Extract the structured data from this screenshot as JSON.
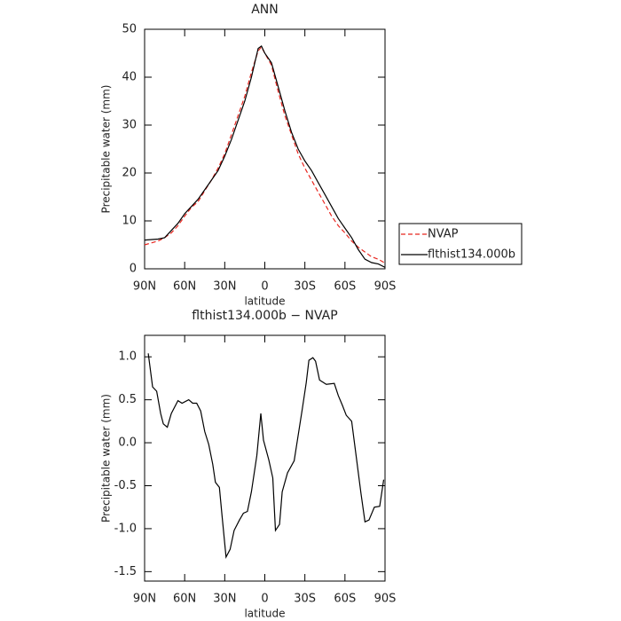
{
  "chart_data": [
    {
      "type": "line",
      "title": "ANN",
      "xlabel": "latitude",
      "ylabel": "Precipitable water (mm)",
      "x": [
        90,
        80,
        75,
        70,
        65,
        60,
        55,
        50,
        45,
        40,
        35,
        30,
        25,
        20,
        15,
        10,
        5,
        2.5,
        0,
        -5,
        -10,
        -15,
        -20,
        -25,
        -30,
        -35,
        -40,
        -45,
        -50,
        -55,
        -60,
        -65,
        -70,
        -75,
        -80,
        -85,
        -90
      ],
      "series": [
        {
          "name": "NVAP",
          "color": "#e8261f",
          "dashed": true,
          "values": [
            5,
            5.8,
            6.5,
            7.5,
            9,
            11,
            12.8,
            14,
            16.3,
            18.5,
            21,
            24,
            28,
            32,
            36,
            41,
            45.5,
            46.3,
            45,
            42.5,
            37,
            32,
            28,
            24,
            21,
            18.5,
            16,
            13.5,
            11,
            9,
            7.5,
            5.8,
            4.5,
            3.5,
            2.5,
            2,
            1.2
          ]
        },
        {
          "name": "flthist134.000b",
          "color": "#000000",
          "dashed": false,
          "values": [
            6,
            6.2,
            6.5,
            8,
            9.5,
            11.5,
            13,
            14.5,
            16.5,
            18.5,
            20.5,
            23.5,
            27,
            31,
            35,
            40,
            46,
            46.5,
            45,
            43,
            38,
            33,
            28.5,
            25,
            22.5,
            20.5,
            18,
            15.5,
            13,
            10.5,
            8.5,
            6.5,
            4,
            2,
            1.3,
            1,
            0.3
          ]
        }
      ],
      "xlim": [
        90,
        -90
      ],
      "xticks": [
        {
          "value": 90,
          "label": "90N"
        },
        {
          "value": 60,
          "label": "60N"
        },
        {
          "value": 30,
          "label": "30N"
        },
        0,
        {
          "value": -30,
          "label": "30S"
        },
        {
          "value": -60,
          "label": "60S"
        },
        {
          "value": -90,
          "label": "90S"
        }
      ],
      "ylim": [
        0,
        50
      ],
      "yticks": [
        0,
        10,
        20,
        30,
        40,
        50
      ],
      "legend": "outside-right"
    },
    {
      "type": "line",
      "title": "flthist134.000b − NVAP",
      "xlabel": "latitude",
      "ylabel": "Precipitable water (mm)",
      "x": [
        87.3,
        84,
        81,
        78,
        76,
        73,
        70,
        65,
        62,
        57,
        54,
        51,
        48,
        45,
        42,
        39,
        37,
        34,
        32,
        29,
        26,
        23,
        19,
        16,
        13,
        10,
        6,
        3,
        1,
        -3,
        -6,
        -8,
        -11,
        -13,
        -17,
        -22,
        -28,
        -31,
        -33,
        -36,
        -38,
        -41,
        -46,
        -52,
        -55,
        -58,
        -61,
        -65,
        -72,
        -75,
        -78,
        -82,
        -86,
        -89
      ],
      "series": [
        {
          "color": "#000000",
          "dashed": false,
          "values": [
            1.04,
            0.65,
            0.6,
            0.34,
            0.22,
            0.18,
            0.34,
            0.49,
            0.46,
            0.5,
            0.46,
            0.46,
            0.37,
            0.13,
            -0.02,
            -0.25,
            -0.46,
            -0.52,
            -0.85,
            -1.33,
            -1.24,
            -1.02,
            -0.9,
            -0.82,
            -0.8,
            -0.57,
            -0.15,
            0.34,
            0.03,
            -0.2,
            -0.41,
            -1.02,
            -0.95,
            -0.57,
            -0.35,
            -0.21,
            0.39,
            0.7,
            0.96,
            0.99,
            0.95,
            0.73,
            0.68,
            0.69,
            0.55,
            0.44,
            0.32,
            0.25,
            -0.59,
            -0.92,
            -0.9,
            -0.75,
            -0.74,
            -0.43
          ]
        }
      ],
      "xlim": [
        90,
        -90
      ],
      "xticks": [
        {
          "value": 90,
          "label": "90N"
        },
        {
          "value": 60,
          "label": "60N"
        },
        {
          "value": 30,
          "label": "30N"
        },
        0,
        {
          "value": -30,
          "label": "30S"
        },
        {
          "value": -60,
          "label": "60S"
        },
        {
          "value": -90,
          "label": "90S"
        }
      ],
      "ylim": [
        -1.61,
        1.25
      ],
      "yticks": [
        {
          "value": 1,
          "label": "1.0"
        },
        0.5,
        {
          "value": 0,
          "label": "0.0"
        },
        -0.5,
        {
          "value": -1,
          "label": "-1.0"
        },
        -1.5
      ]
    }
  ]
}
